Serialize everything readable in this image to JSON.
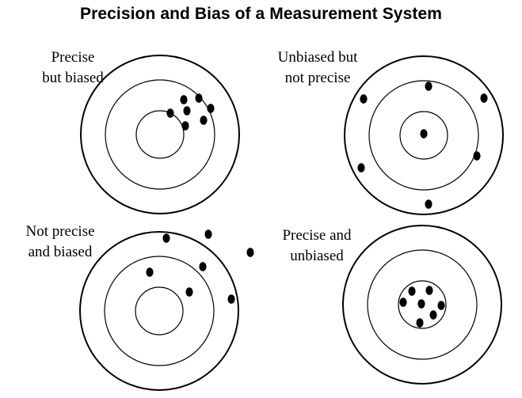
{
  "title": "Precision and Bias of a Measurement System",
  "colors": {
    "ink": "#000000",
    "background": "#ffffff"
  },
  "targets": [
    {
      "id": "precise-but-biased",
      "label_lines": [
        "Precise",
        "but biased"
      ],
      "rings": 3,
      "shots": [
        {
          "dx": 0.3,
          "dy": -0.44
        },
        {
          "dx": 0.49,
          "dy": -0.46
        },
        {
          "dx": 0.64,
          "dy": -0.33
        },
        {
          "dx": 0.13,
          "dy": -0.27
        },
        {
          "dx": 0.34,
          "dy": -0.3
        },
        {
          "dx": 0.55,
          "dy": -0.18
        },
        {
          "dx": 0.32,
          "dy": -0.11
        }
      ]
    },
    {
      "id": "unbiased-not-precise",
      "label_lines": [
        "Unbiased but",
        "not precise"
      ],
      "rings": 3,
      "shots": [
        {
          "dx": 0.06,
          "dy": -0.62
        },
        {
          "dx": -0.76,
          "dy": -0.46
        },
        {
          "dx": 0.76,
          "dy": -0.47
        },
        {
          "dx": 0.0,
          "dy": -0.02
        },
        {
          "dx": 0.67,
          "dy": 0.26
        },
        {
          "dx": -0.79,
          "dy": 0.41
        },
        {
          "dx": 0.06,
          "dy": 0.87
        }
      ]
    },
    {
      "id": "not-precise-biased",
      "label_lines": [
        "Not precise",
        "and biased"
      ],
      "rings": 3,
      "shots": [
        {
          "dx": 0.09,
          "dy": -0.92
        },
        {
          "dx": 0.62,
          "dy": -0.97
        },
        {
          "dx": 1.15,
          "dy": -0.74
        },
        {
          "dx": -0.12,
          "dy": -0.49
        },
        {
          "dx": 0.55,
          "dy": -0.56
        },
        {
          "dx": 0.38,
          "dy": -0.24
        },
        {
          "dx": 0.91,
          "dy": -0.15
        }
      ]
    },
    {
      "id": "precise-unbiased",
      "label_lines": [
        "Precise and",
        "unbiased"
      ],
      "rings": 3,
      "shots": [
        {
          "dx": -0.13,
          "dy": -0.17
        },
        {
          "dx": 0.09,
          "dy": -0.18
        },
        {
          "dx": -0.24,
          "dy": -0.03
        },
        {
          "dx": -0.01,
          "dy": -0.01
        },
        {
          "dx": 0.24,
          "dy": 0.01
        },
        {
          "dx": 0.14,
          "dy": 0.13
        },
        {
          "dx": -0.03,
          "dy": 0.23
        }
      ]
    }
  ]
}
